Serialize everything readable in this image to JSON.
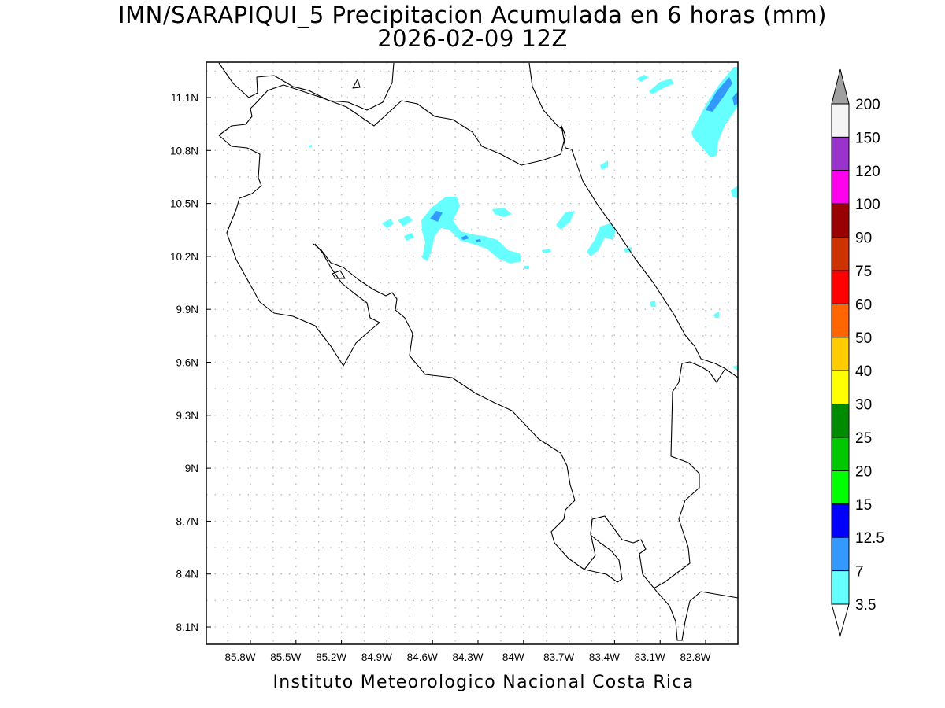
{
  "header": {
    "title": "IMN/SARAPIQUI_5 Precipitacion Acumulada en 6 horas (mm)",
    "subtitle": "2026-02-09 12Z"
  },
  "footer": {
    "credit": "Instituto Meteorologico Nacional Costa Rica"
  },
  "map": {
    "lon_range": [
      -86.0,
      -82.6
    ],
    "lat_range": [
      8.0,
      11.3
    ],
    "grid": "dotted",
    "x_tick_labels": [
      "85.8W",
      "85.5W",
      "85.2W",
      "84.9W",
      "84.6W",
      "84.3W",
      "84W",
      "83.7W",
      "83.4W",
      "83.1W",
      "82.8W"
    ],
    "y_tick_labels": [
      "11.1N",
      "10.8N",
      "10.5N",
      "10.2N",
      "9.9N",
      "9.6N",
      "9.3N",
      "9N",
      "8.7N",
      "8.4N",
      "8.1N"
    ]
  },
  "legend": {
    "labels": [
      "200",
      "150",
      "120",
      "100",
      "90",
      "75",
      "60",
      "50",
      "40",
      "30",
      "25",
      "20",
      "15",
      "12.5",
      "7",
      "3.5"
    ],
    "colors": [
      "#f4f4f4",
      "#9933cc",
      "#ff00ee",
      "#990000",
      "#cc3300",
      "#ff0000",
      "#ff6600",
      "#ffcc00",
      "#ffff00",
      "#008a00",
      "#00c800",
      "#00ff00",
      "#0000ff",
      "#3399ff",
      "#66ffff"
    ],
    "over_arrow_color": "#a0a0a0",
    "under_arrow_color": "#ffffff"
  },
  "precip_colors": {
    "light": "#66ffff",
    "medium": "#3399ff"
  }
}
